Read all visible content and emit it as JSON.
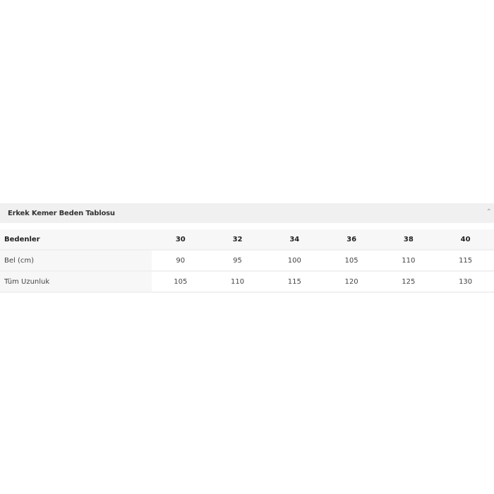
{
  "panel": {
    "title": "Erkek Kemer Beden Tablosu",
    "toggle_icon": "chevron-up-icon"
  },
  "table": {
    "header": {
      "label": "Bedenler",
      "values": [
        "30",
        "32",
        "34",
        "36",
        "38",
        "40"
      ]
    },
    "rows": [
      {
        "label": "Bel (cm)",
        "values": [
          "90",
          "95",
          "100",
          "105",
          "110",
          "115"
        ]
      },
      {
        "label": "Tüm Uzunluk",
        "values": [
          "105",
          "110",
          "115",
          "120",
          "125",
          "130"
        ]
      }
    ]
  }
}
